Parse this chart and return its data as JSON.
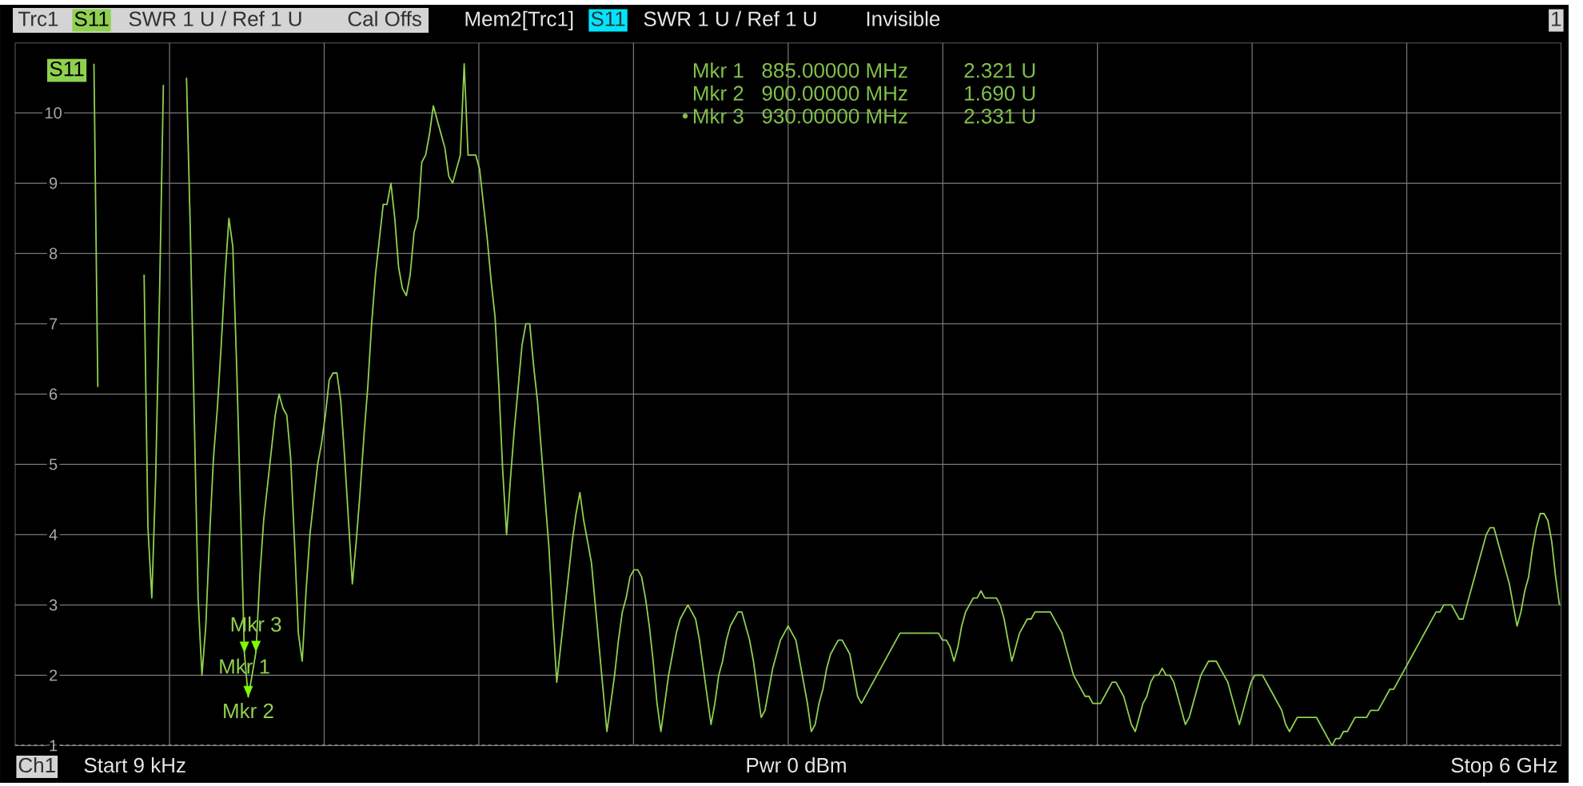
{
  "chart_data": {
    "type": "line",
    "categories": [
      null,
      null,
      null,
      null,
      null,
      null,
      null,
      null,
      null,
      null,
      null,
      null,
      null,
      null,
      null,
      null,
      null,
      null,
      null,
      null,
      null,
      null,
      null,
      null,
      null,
      null,
      null,
      null,
      null,
      null,
      null,
      null,
      null,
      null,
      null,
      null,
      null,
      null,
      null,
      null,
      null,
      null,
      null,
      null,
      null,
      null,
      null,
      null,
      null,
      null,
      null,
      null,
      null,
      null,
      null,
      null,
      null,
      null,
      null,
      null,
      null,
      null,
      null,
      null,
      null,
      null,
      null,
      null,
      null,
      null,
      null,
      null,
      null,
      null,
      null,
      null,
      null,
      null,
      null,
      null,
      null,
      null,
      null,
      null,
      null,
      null,
      null,
      null,
      null,
      null,
      null,
      null,
      null,
      null,
      null,
      null,
      null,
      null,
      null,
      null,
      null,
      null,
      null,
      null,
      null,
      null,
      null,
      null,
      null,
      null,
      null,
      null,
      null,
      null,
      null,
      null,
      null,
      null,
      null,
      null,
      null,
      null,
      null,
      null,
      null,
      null,
      null,
      null,
      null,
      null,
      null,
      null,
      null,
      null,
      null,
      null,
      null,
      null,
      null,
      null,
      null,
      null,
      null,
      null,
      null,
      null,
      null,
      null,
      null,
      null,
      null,
      null,
      null,
      null,
      null,
      null,
      null,
      null,
      null,
      null,
      null,
      null,
      null,
      null,
      null,
      null,
      null,
      null,
      null,
      null,
      null,
      null,
      null,
      null,
      null,
      null,
      null,
      null,
      null,
      null,
      null,
      null,
      null,
      null,
      null,
      null,
      null,
      null,
      null,
      null,
      null,
      null,
      null,
      null,
      null,
      null,
      null,
      null,
      null,
      null,
      null,
      null,
      null,
      null,
      null,
      null,
      null,
      null,
      null,
      null,
      null,
      null,
      null,
      null,
      null,
      null,
      null,
      null,
      null,
      null,
      null,
      null,
      null,
      null,
      null,
      null,
      null,
      null,
      null,
      null,
      null,
      null,
      null,
      null,
      null,
      null,
      null,
      null,
      null,
      null,
      null,
      null,
      null,
      null,
      null,
      null,
      null,
      null,
      null,
      null,
      null,
      null,
      null,
      null,
      null,
      null,
      null,
      null,
      null,
      null,
      null,
      null,
      null,
      null,
      null,
      null,
      null,
      null,
      null,
      null,
      null,
      null,
      null,
      null,
      null,
      null,
      null,
      null,
      null,
      null,
      null,
      null,
      null,
      null,
      null,
      null,
      null,
      null,
      null,
      null,
      null,
      null,
      null,
      null,
      null,
      null,
      null,
      null,
      null,
      null,
      null,
      null,
      null,
      null,
      null,
      null,
      null,
      null,
      null,
      null,
      null,
      null,
      null,
      null,
      null,
      null,
      null,
      null,
      null,
      null,
      null,
      null,
      null,
      null,
      null,
      null,
      null,
      null,
      null,
      null,
      null,
      null,
      null,
      null,
      null,
      null,
      null,
      null,
      null,
      null,
      null,
      null,
      null,
      null,
      null,
      null,
      null,
      null,
      null,
      null,
      null,
      null,
      null,
      null,
      null,
      null,
      null,
      null,
      null,
      null,
      null,
      null,
      null,
      null,
      null,
      null,
      null,
      null,
      null,
      null,
      null,
      null,
      null,
      null,
      null,
      null,
      null,
      null,
      null,
      null,
      null,
      null,
      null,
      null,
      null,
      null,
      null,
      null,
      null,
      null,
      null,
      null,
      null,
      null,
      null,
      null,
      null,
      null,
      null,
      null,
      null
    ],
    "series": [
      {
        "name": "S11",
        "color": "#90d050",
        "values": [
          null,
          null,
          null,
          null,
          null,
          null,
          null,
          null,
          null,
          null,
          null,
          null,
          null,
          null,
          null,
          null,
          null,
          null,
          null,
          null,
          null,
          null,
          null,
          null,
          null,
          null,
          null,
          null,
          null,
          null,
          null,
          null,
          null,
          null,
          null,
          null,
          null,
          null,
          null,
          null,
          null,
          null,
          null,
          null,
          10.5,
          8.3,
          5.7,
          3.1,
          2.0,
          2.7,
          4.0,
          5.1,
          5.8,
          6.7,
          7.7,
          8.5,
          8.1,
          6.4,
          4.4,
          2.321,
          1.69,
          2.0,
          2.331,
          3.4,
          4.2,
          4.7,
          5.2,
          5.7,
          6.0,
          5.8,
          5.7,
          5.1,
          3.9,
          2.6,
          2.2,
          3.2,
          4.0,
          4.5,
          5.0,
          5.3,
          5.7,
          6.2,
          6.3,
          6.3,
          5.9,
          5.1,
          4.2,
          3.3,
          3.9,
          4.6,
          5.4,
          6.1,
          7.0,
          7.7,
          8.2,
          8.7,
          8.7,
          9.0,
          8.5,
          7.8,
          7.5,
          7.4,
          7.7,
          8.3,
          8.5,
          9.3,
          9.4,
          9.7,
          10.1,
          9.9,
          9.7,
          9.5,
          9.1,
          9.0,
          9.2,
          9.4,
          10.7,
          9.4,
          9.4,
          9.4,
          9.2,
          8.7,
          8.2,
          7.6,
          7.1,
          6.1,
          4.9,
          4.0,
          4.8,
          5.5,
          6.1,
          6.7,
          7.0,
          7.0,
          6.4,
          5.9,
          5.2,
          4.5,
          3.8,
          2.8,
          1.9,
          2.4,
          2.9,
          3.4,
          3.9,
          4.3,
          4.6,
          4.2,
          3.9,
          3.6,
          3.0,
          2.4,
          1.8,
          1.2,
          1.6,
          2.0,
          2.5,
          2.9,
          3.1,
          3.4,
          3.5,
          3.5,
          3.4,
          3.1,
          2.7,
          2.2,
          1.6,
          1.2,
          1.6,
          2.0,
          2.3,
          2.6,
          2.8,
          2.9,
          3.0,
          2.9,
          2.8,
          2.5,
          2.1,
          1.7,
          1.3,
          1.6,
          2.0,
          2.2,
          2.5,
          2.7,
          2.8,
          2.9,
          2.9,
          2.7,
          2.5,
          2.2,
          1.8,
          1.4,
          1.5,
          1.8,
          2.1,
          2.3,
          2.5,
          2.6,
          2.7,
          2.6,
          2.5,
          2.2,
          1.9,
          1.6,
          1.2,
          1.3,
          1.6,
          1.8,
          2.1,
          2.3,
          2.4,
          2.5,
          2.5,
          2.4,
          2.3,
          2.0,
          1.7,
          1.6,
          1.7,
          1.8,
          1.9,
          2.0,
          2.1,
          2.2,
          2.3,
          2.4,
          2.5,
          2.6,
          2.6,
          2.6,
          2.6,
          2.6,
          2.6,
          2.6,
          2.6,
          2.6,
          2.6,
          2.6,
          2.5,
          2.5,
          2.4,
          2.2,
          2.4,
          2.7,
          2.9,
          3.0,
          3.1,
          3.1,
          3.2,
          3.1,
          3.1,
          3.1,
          3.1,
          3.0,
          2.8,
          2.5,
          2.2,
          2.4,
          2.6,
          2.7,
          2.8,
          2.8,
          2.9,
          2.9,
          2.9,
          2.9,
          2.9,
          2.8,
          2.7,
          2.6,
          2.4,
          2.2,
          2.0,
          1.9,
          1.8,
          1.7,
          1.7,
          1.6,
          1.6,
          1.6,
          1.7,
          1.8,
          1.9,
          1.9,
          1.8,
          1.7,
          1.5,
          1.3,
          1.2,
          1.4,
          1.6,
          1.7,
          1.9,
          2.0,
          2.0,
          2.1,
          2.0,
          2.0,
          1.9,
          1.7,
          1.5,
          1.3,
          1.4,
          1.6,
          1.8,
          2.0,
          2.1,
          2.2,
          2.2,
          2.2,
          2.1,
          2.0,
          1.9,
          1.7,
          1.5,
          1.3,
          1.5,
          1.7,
          1.9,
          2.0,
          2.0,
          2.0,
          1.9,
          1.8,
          1.7,
          1.6,
          1.5,
          1.3,
          1.2,
          1.3,
          1.4,
          1.4,
          1.4,
          1.4,
          1.4,
          1.4,
          1.3,
          1.2,
          1.1,
          1.0,
          1.1,
          1.1,
          1.2,
          1.2,
          1.3,
          1.4,
          1.4,
          1.4,
          1.4,
          1.5,
          1.5,
          1.5,
          1.6,
          1.7,
          1.8,
          1.8,
          1.9,
          2.0,
          2.1,
          2.2,
          2.3,
          2.4,
          2.5,
          2.6,
          2.7,
          2.8,
          2.9,
          2.9,
          3.0,
          3.0,
          3.0,
          2.9,
          2.8,
          2.8,
          3.0,
          3.2,
          3.4,
          3.6,
          3.8,
          4.0,
          4.1,
          4.1,
          3.9,
          3.7,
          3.5,
          3.3,
          3.0,
          2.7,
          2.9,
          3.2,
          3.4,
          3.8,
          4.1,
          4.3,
          4.3,
          4.2,
          3.9,
          3.4,
          3.0
        ]
      },
      {
        "color": "#90d050",
        "values": [
          null,
          null,
          null,
          null,
          null,
          null,
          null,
          null,
          null,
          null,
          null,
          null,
          null,
          null,
          null,
          null,
          null,
          null,
          null,
          null,
          10.7,
          6.1,
          null,
          null,
          null,
          null,
          null,
          null,
          null,
          null,
          null,
          null,
          null,
          null,
          null,
          null,
          null,
          null,
          null,
          null,
          null,
          null,
          null,
          null,
          null,
          null,
          null,
          null,
          null,
          null,
          null,
          null,
          null,
          null,
          null,
          null,
          null,
          null,
          null,
          null,
          null,
          null,
          null,
          null,
          null,
          null,
          null,
          null,
          null,
          null,
          null,
          null,
          null,
          null,
          null,
          null,
          null,
          null,
          null,
          null,
          null,
          null,
          null,
          null,
          null,
          null,
          null,
          null,
          null,
          null,
          null,
          null,
          null,
          null,
          null,
          null,
          null,
          null,
          null,
          null,
          null,
          null,
          null,
          null,
          null,
          null,
          null,
          null,
          null,
          null,
          null,
          null,
          null,
          null,
          null,
          null,
          null,
          null,
          null,
          null,
          null,
          null,
          null,
          null,
          null,
          null,
          null,
          null,
          null,
          null,
          null,
          null,
          null,
          null,
          null,
          null,
          null,
          null,
          null,
          null,
          null,
          null,
          null,
          null,
          null,
          null,
          null,
          null,
          null,
          null,
          null,
          null,
          null,
          null,
          null,
          null,
          null,
          null,
          null,
          null,
          null,
          null,
          null,
          null,
          null,
          null,
          null,
          null,
          null,
          null,
          null,
          null,
          null,
          null,
          null,
          null,
          null,
          null,
          null,
          null,
          null,
          null,
          null,
          null,
          null,
          null,
          null,
          null,
          null,
          null,
          null,
          null,
          null,
          null,
          null,
          null,
          null,
          null,
          null,
          null,
          null,
          null,
          null,
          null,
          null,
          null,
          null,
          null,
          null,
          null,
          null,
          null,
          null,
          null,
          null,
          null,
          null,
          null,
          null,
          null,
          null,
          null,
          null,
          null,
          null,
          null,
          null,
          null,
          null,
          null,
          null,
          null,
          null,
          null,
          null,
          null,
          null,
          null,
          null,
          null,
          null,
          null,
          null,
          null,
          null,
          null,
          null,
          null,
          null,
          null,
          null,
          null,
          null,
          null,
          null,
          null,
          null,
          null,
          null,
          null,
          null,
          null,
          null,
          null,
          null,
          null,
          null,
          null,
          null,
          null,
          null,
          null,
          null,
          null,
          null,
          null,
          null,
          null,
          null,
          null,
          null,
          null,
          null,
          null,
          null,
          null,
          null,
          null,
          null,
          null,
          null,
          null,
          null,
          null,
          null,
          null,
          null,
          null,
          null,
          null,
          null,
          null,
          null,
          null,
          null,
          null,
          null,
          null,
          null,
          null,
          null,
          null,
          null,
          null,
          null,
          null,
          null,
          null,
          null,
          null,
          null,
          null,
          null,
          null,
          null,
          null,
          null,
          null,
          null,
          null,
          null,
          null,
          null,
          null,
          null,
          null,
          null,
          null,
          null,
          null,
          null,
          null,
          null,
          null,
          null,
          null,
          null,
          null,
          null,
          null,
          null,
          null,
          null,
          null,
          null,
          null,
          null,
          null,
          null,
          null,
          null,
          null,
          null,
          null,
          null,
          null,
          null,
          null,
          null,
          null,
          null,
          null,
          null,
          null,
          null,
          null,
          null,
          null,
          null,
          null,
          null,
          null,
          null,
          null,
          null,
          null,
          null,
          null,
          null,
          null,
          null,
          null,
          null,
          null,
          null,
          null,
          null,
          null,
          null,
          null,
          null
        ]
      },
      {
        "color": "#90d050",
        "values": [
          null,
          null,
          null,
          null,
          null,
          null,
          null,
          null,
          null,
          null,
          null,
          null,
          null,
          null,
          null,
          null,
          null,
          null,
          null,
          null,
          null,
          null,
          null,
          null,
          null,
          null,
          null,
          null,
          null,
          null,
          null,
          null,
          null,
          7.7,
          4.1,
          3.1,
          4.8,
          7.4,
          10.4,
          null,
          null,
          null,
          null,
          null,
          null,
          null,
          null,
          null,
          null,
          null,
          null,
          null,
          null,
          null,
          null,
          null,
          null,
          null,
          null,
          null,
          null,
          null,
          null,
          null,
          null,
          null,
          null,
          null,
          null,
          null,
          null,
          null,
          null,
          null,
          null,
          null,
          null,
          null,
          null,
          null,
          null,
          null,
          null,
          null,
          null,
          null,
          null,
          null,
          null,
          null,
          null,
          null,
          null,
          null,
          null,
          null,
          null,
          null,
          null,
          null,
          null,
          null,
          null,
          null,
          null,
          null,
          null,
          null,
          null,
          null,
          null,
          null,
          null,
          null,
          null,
          null,
          null,
          null,
          null,
          null,
          null,
          null,
          null,
          null,
          null,
          null,
          null,
          null,
          null,
          null,
          null,
          null,
          null,
          null,
          null,
          null,
          null,
          null,
          null,
          null,
          null,
          null,
          null,
          null,
          null,
          null,
          null,
          null,
          null,
          null,
          null,
          null,
          null,
          null,
          null,
          null,
          null,
          null,
          null,
          null,
          null,
          null,
          null,
          null,
          null,
          null,
          null,
          null,
          null,
          null,
          null,
          null,
          null,
          null,
          null,
          null,
          null,
          null,
          null,
          null,
          null,
          null,
          null,
          null,
          null,
          null,
          null,
          null,
          null,
          null,
          null,
          null,
          null,
          null,
          null,
          null,
          null,
          null,
          null,
          null,
          null,
          null,
          null,
          null,
          null,
          null,
          null,
          null,
          null,
          null,
          null,
          null,
          null,
          null,
          null,
          null,
          null,
          null,
          null,
          null,
          null,
          null,
          null,
          null,
          null,
          null,
          null,
          null,
          null,
          null,
          null,
          null,
          null,
          null,
          null,
          null,
          null,
          null,
          null,
          null,
          null,
          null,
          null,
          null,
          null,
          null,
          null,
          null,
          null,
          null,
          null,
          null,
          null,
          null,
          null,
          null,
          null,
          null,
          null,
          null,
          null,
          null,
          null,
          null,
          null,
          null,
          null,
          null,
          null,
          null,
          null,
          null,
          null,
          null,
          null,
          null,
          null,
          null,
          null,
          null,
          null,
          null,
          null,
          null,
          null,
          null,
          null,
          null,
          null,
          null,
          null,
          null,
          null,
          null,
          null,
          null,
          null,
          null,
          null,
          null,
          null,
          null,
          null,
          null,
          null,
          null,
          null,
          null,
          null,
          null,
          null,
          null,
          null,
          null,
          null,
          null,
          null,
          null,
          null,
          null,
          null,
          null,
          null,
          null,
          null,
          null,
          null,
          null,
          null,
          null,
          null,
          null,
          null,
          null,
          null,
          null,
          null,
          null,
          null,
          null,
          null,
          null,
          null,
          null,
          null,
          null,
          null,
          null,
          null,
          null,
          null,
          null,
          null,
          null,
          null,
          null,
          null,
          null,
          null,
          null,
          null,
          null,
          null,
          null,
          null,
          null,
          null,
          null,
          null,
          null,
          null,
          null,
          null,
          null,
          null,
          null,
          null,
          null,
          null,
          null,
          null,
          null,
          null,
          null,
          null,
          null,
          null,
          null,
          null,
          null,
          null,
          null,
          null,
          null,
          null,
          null,
          null,
          null,
          null,
          null,
          null
        ]
      }
    ],
    "ylim": [
      1,
      11
    ],
    "yticks": [
      1,
      2,
      3,
      4,
      5,
      6,
      7,
      8,
      9,
      10
    ],
    "grid": true,
    "legend": "top left",
    "ref_lines": [
      {
        "axis": "y",
        "value": 1,
        "color": "#c8c8c8",
        "line_style": "dashed"
      }
    ],
    "annotations": [
      "Trc1",
      "SWR 1 U / Ref 1 U",
      "Cal Offs",
      "Mem2[Trc1]",
      "S11",
      "SWR 1 U / Ref 1 U",
      "Invisible",
      "1",
      "Ch1",
      "Start 9 kHz",
      "Pwr 0 dBm",
      "Stop 6 GHz",
      {
        "text": "Mkr 1",
        "y": 2.321
      },
      "885.00000 MHz",
      "2.321 U",
      {
        "text": "Mkr 2",
        "y": 1.69
      },
      "900.00000 MHz",
      "1.690 U",
      {
        "text": "Mkr 3",
        "y": 2.331
      },
      "930.00000 MHz",
      "2.331 U"
    ]
  }
}
